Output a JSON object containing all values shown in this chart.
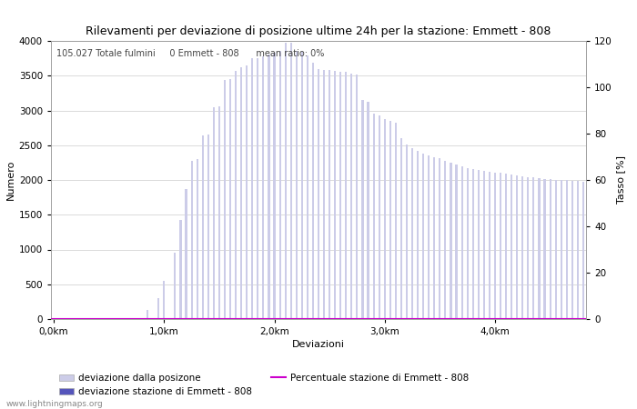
{
  "title": "Rilevamenti per deviazione di posizione ultime 24h per la stazione: Emmett - 808",
  "xlabel": "Deviazioni",
  "ylabel_left": "Numero",
  "ylabel_right": "Tasso [%]",
  "annotation": "105.027 Totale fulmini     0 Emmett - 808      mean ratio: 0%",
  "bar_color_light": "#cccce8",
  "bar_color_dark": "#5555bb",
  "line_color": "#cc00cc",
  "background_color": "#ffffff",
  "grid_color": "#cccccc",
  "ylim_left": [
    0,
    4000
  ],
  "ylim_right": [
    0,
    120
  ],
  "yticks_left": [
    0,
    500,
    1000,
    1500,
    2000,
    2500,
    3000,
    3500,
    4000
  ],
  "yticks_right": [
    0,
    20,
    40,
    60,
    80,
    100,
    120
  ],
  "xtick_labels": [
    "0,0km",
    "1,0km",
    "2,0km",
    "3,0km",
    "4,0km"
  ],
  "watermark": "www.lightningmaps.org",
  "legend_labels": [
    "deviazione dalla posizone",
    "deviazione stazione di Emmett - 808",
    "Percentuale stazione di Emmett - 808"
  ],
  "bar_values": [
    2,
    2,
    2,
    2,
    2,
    2,
    2,
    2,
    2,
    2,
    2,
    2,
    2,
    2,
    2,
    2,
    2,
    130,
    2,
    300,
    550,
    2,
    960,
    1430,
    1870,
    2270,
    2300,
    2640,
    2650,
    3050,
    3060,
    3440,
    3450,
    3570,
    3620,
    3650,
    3750,
    3750,
    3780,
    3800,
    3830,
    3850,
    3970,
    3970,
    3850,
    3840,
    3790,
    3690,
    3600,
    3580,
    3580,
    3570,
    3560,
    3550,
    3530,
    3510,
    3150,
    3120,
    2960,
    2930,
    2880,
    2850,
    2820,
    2600,
    2510,
    2460,
    2420,
    2380,
    2350,
    2330,
    2310,
    2275,
    2245,
    2220,
    2200,
    2175,
    2155,
    2140,
    2130,
    2120,
    2110,
    2100,
    2090,
    2080,
    2065,
    2055,
    2045,
    2035,
    2025,
    2015,
    2010,
    2005,
    2000,
    1995,
    1990,
    1985,
    1980
  ]
}
